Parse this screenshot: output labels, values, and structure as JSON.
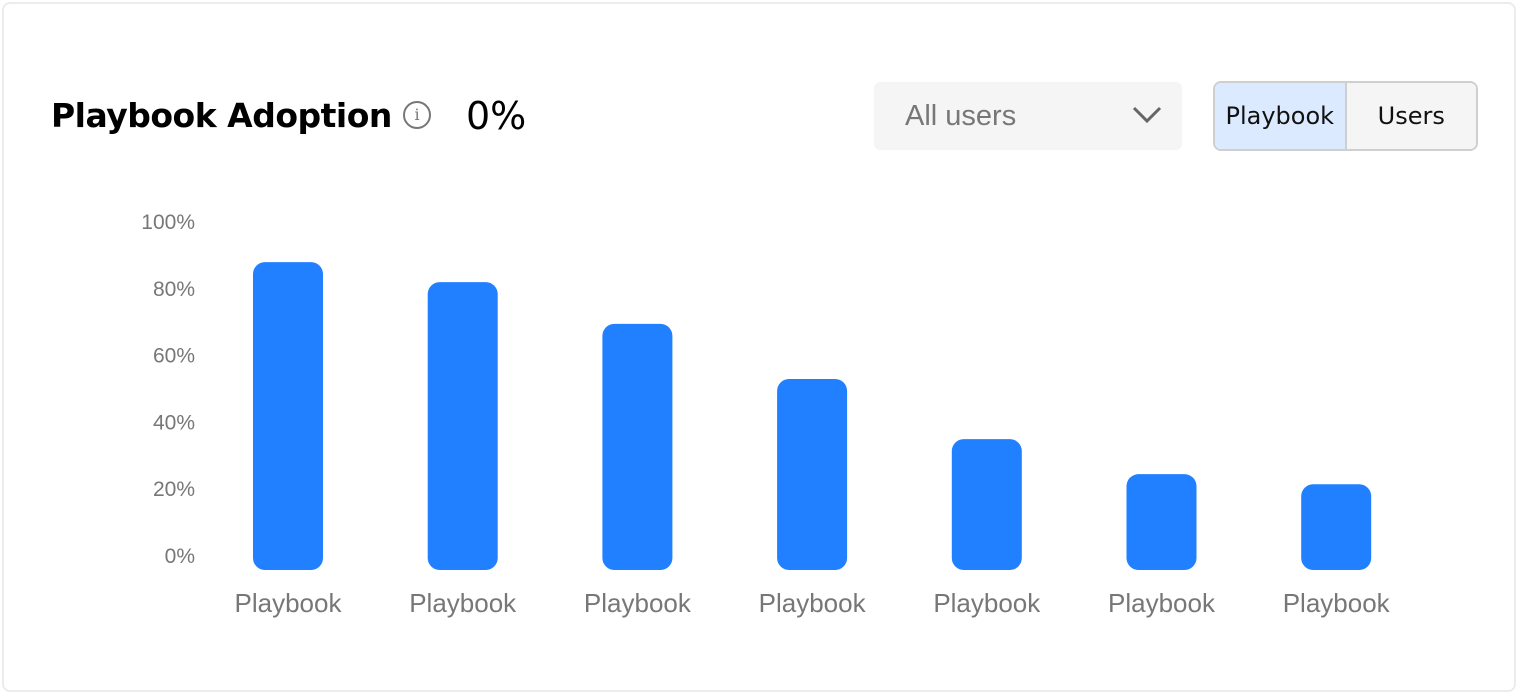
{
  "header": {
    "title": "Playbook Adoption",
    "info_icon": "info-icon",
    "value": "0%"
  },
  "filter": {
    "selected": "All users",
    "icon": "chevron-down-icon"
  },
  "toggle": {
    "options": [
      "Playbook",
      "Users"
    ],
    "active": "Playbook"
  },
  "chart_data": {
    "type": "bar",
    "categories": [
      "Playbook",
      "Playbook",
      "Playbook",
      "Playbook",
      "Playbook",
      "Playbook",
      "Playbook"
    ],
    "values": [
      88,
      82,
      69.5,
      53,
      35,
      24.5,
      21.5
    ],
    "ylim": [
      0,
      100
    ],
    "yticks": [
      "0%",
      "20%",
      "40%",
      "60%",
      "80%",
      "100%"
    ],
    "grid": false,
    "color": "#2080ff"
  }
}
